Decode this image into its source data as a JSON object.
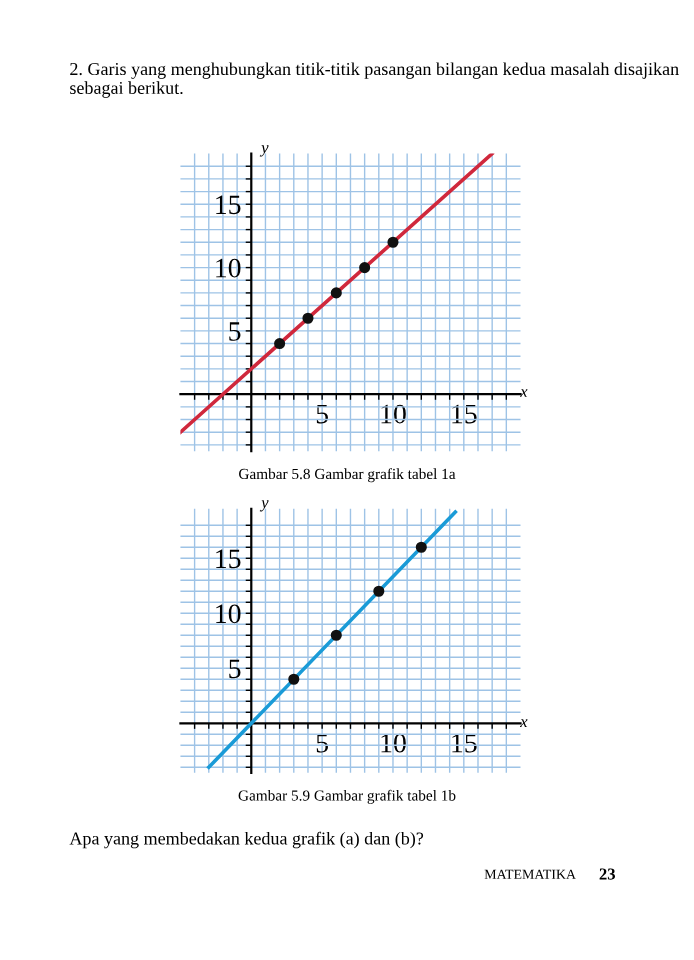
{
  "chart_data": [
    {
      "type": "line",
      "title": "2. Garis yang menghubungkan titik-titik pasangan bilangan kedua masalah disajikan sebagai berikut.",
      "xlabel": "x",
      "ylabel": "y",
      "annotations": [
        "Gambar 5.8 Gambar grafik tabel 1a"
      ],
      "xlim": [
        -5,
        19
      ],
      "ylim": [
        -4.5,
        19
      ],
      "xticks": [
        {
          "value": -4,
          "label": null
        },
        {
          "value": -3,
          "label": null
        },
        {
          "value": -2,
          "label": null
        },
        {
          "value": -1,
          "label": null
        },
        {
          "value": 1,
          "label": null
        },
        {
          "value": 2,
          "label": null
        },
        {
          "value": 3,
          "label": null
        },
        {
          "value": 4,
          "label": null
        },
        5,
        {
          "value": 6,
          "label": null
        },
        {
          "value": 7,
          "label": null
        },
        {
          "value": 8,
          "label": null
        },
        {
          "value": 9,
          "label": null
        },
        10,
        {
          "value": 11,
          "label": null
        },
        {
          "value": 12,
          "label": null
        },
        {
          "value": 13,
          "label": null
        },
        {
          "value": 14,
          "label": null
        },
        15,
        {
          "value": 16,
          "label": null
        },
        {
          "value": 17,
          "label": null
        },
        {
          "value": 18,
          "label": null
        }
      ],
      "yticks": [
        {
          "value": -4,
          "label": null
        },
        {
          "value": -3,
          "label": null
        },
        {
          "value": -2,
          "label": null
        },
        {
          "value": -1,
          "label": null
        },
        {
          "value": 1,
          "label": null
        },
        {
          "value": 2,
          "label": null
        },
        {
          "value": 3,
          "label": null
        },
        {
          "value": 4,
          "label": null
        },
        5,
        {
          "value": 6,
          "label": null
        },
        {
          "value": 7,
          "label": null
        },
        {
          "value": 8,
          "label": null
        },
        {
          "value": 9,
          "label": null
        },
        10,
        {
          "value": 11,
          "label": null
        },
        {
          "value": 12,
          "label": null
        },
        {
          "value": 13,
          "label": null
        },
        {
          "value": 14,
          "label": null
        },
        15,
        {
          "value": 16,
          "label": null
        },
        {
          "value": 17,
          "label": null
        },
        {
          "value": 18,
          "label": null
        }
      ],
      "grid": true,
      "series": [
        {
          "color": "#d0283c",
          "x": [
            -5,
            17
          ],
          "values": [
            -3,
            19
          ],
          "marker": "none"
        },
        {
          "type": "scatter",
          "color": "#111111",
          "x": [
            2,
            4,
            6,
            8,
            10
          ],
          "values": [
            4,
            6,
            8,
            10,
            12
          ],
          "marker": "circle"
        }
      ]
    },
    {
      "type": "line",
      "xlabel": "x",
      "ylabel": "y",
      "annotations": [
        "Gambar 5.9 Gambar grafik tabel 1b",
        "Apa yang membedakan kedua grafik (a) dan (b)?",
        "MATEMATIKA",
        "23"
      ],
      "xlim": [
        -5,
        19
      ],
      "ylim": [
        -4.5,
        19.5
      ],
      "xticks": [
        {
          "value": -4,
          "label": null
        },
        {
          "value": -3,
          "label": null
        },
        {
          "value": -2,
          "label": null
        },
        {
          "value": -1,
          "label": null
        },
        {
          "value": 1,
          "label": null
        },
        {
          "value": 2,
          "label": null
        },
        {
          "value": 3,
          "label": null
        },
        {
          "value": 4,
          "label": null
        },
        5,
        {
          "value": 6,
          "label": null
        },
        {
          "value": 7,
          "label": null
        },
        {
          "value": 8,
          "label": null
        },
        {
          "value": 9,
          "label": null
        },
        10,
        {
          "value": 11,
          "label": null
        },
        {
          "value": 12,
          "label": null
        },
        {
          "value": 13,
          "label": null
        },
        {
          "value": 14,
          "label": null
        },
        15,
        {
          "value": 16,
          "label": null
        },
        {
          "value": 17,
          "label": null
        },
        {
          "value": 18,
          "label": null
        }
      ],
      "yticks": [
        {
          "value": -4,
          "label": null
        },
        {
          "value": -3,
          "label": null
        },
        {
          "value": -2,
          "label": null
        },
        {
          "value": -1,
          "label": null
        },
        {
          "value": 1,
          "label": null
        },
        {
          "value": 2,
          "label": null
        },
        {
          "value": 3,
          "label": null
        },
        {
          "value": 4,
          "label": null
        },
        5,
        {
          "value": 6,
          "label": null
        },
        {
          "value": 7,
          "label": null
        },
        {
          "value": 8,
          "label": null
        },
        {
          "value": 9,
          "label": null
        },
        10,
        {
          "value": 11,
          "label": null
        },
        {
          "value": 12,
          "label": null
        },
        {
          "value": 13,
          "label": null
        },
        {
          "value": 14,
          "label": null
        },
        15,
        {
          "value": 16,
          "label": null
        },
        {
          "value": 17,
          "label": null
        },
        {
          "value": 18,
          "label": null
        }
      ],
      "grid": true,
      "series": [
        {
          "color": "#1a9bd7",
          "x": [
            -3,
            14.4
          ],
          "values": [
            -4,
            19.2
          ],
          "marker": "none"
        },
        {
          "type": "scatter",
          "color": "#111111",
          "x": [
            3,
            6,
            9,
            12
          ],
          "values": [
            4,
            8,
            12,
            16
          ],
          "marker": "circle"
        }
      ]
    }
  ]
}
